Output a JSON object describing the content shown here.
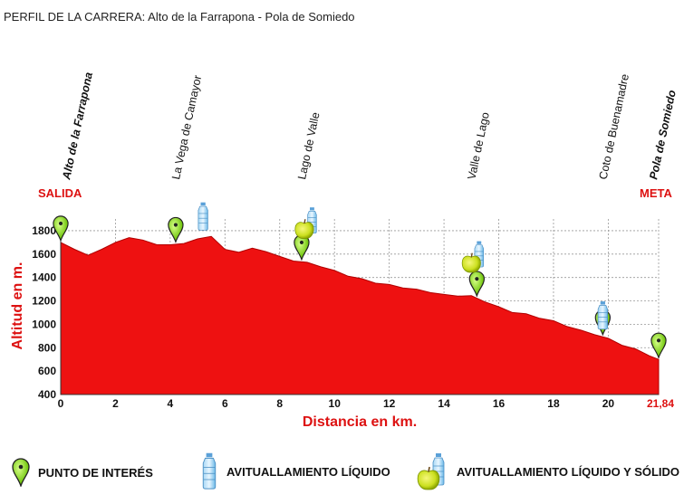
{
  "header": {
    "title": "PERFIL DE LA CARRERA: Alto de la Farrapona - Pola de Somiedo"
  },
  "chart_data": {
    "type": "area",
    "title": "PERFIL DE LA CARRERA: Alto de la Farrapona - Pola de Somiedo",
    "xlabel": "Distancia en km.",
    "ylabel": "Altitud en m.",
    "xlim": [
      0,
      21.84
    ],
    "ylim": [
      400,
      1900
    ],
    "x_ticks": [
      "0",
      "2",
      "4",
      "6",
      "8",
      "10",
      "12",
      "14",
      "16",
      "18",
      "20",
      "21,84"
    ],
    "y_ticks": [
      "400",
      "600",
      "800",
      "1000",
      "1200",
      "1400",
      "1600",
      "1800"
    ],
    "grid": true,
    "fill_color": "#ee1111",
    "series": [
      {
        "x": [
          0,
          0.5,
          1,
          1.5,
          2,
          2.5,
          3,
          3.5,
          4,
          4.5,
          5,
          5.5,
          6,
          6.5,
          7,
          7.5,
          8,
          8.5,
          9,
          9.5,
          10,
          10.5,
          11,
          11.5,
          12,
          12.5,
          13,
          13.5,
          14,
          14.5,
          15,
          15.5,
          16,
          16.5,
          17,
          17.5,
          18,
          18.5,
          19,
          19.5,
          20,
          20.5,
          21,
          21.5,
          21.84
        ],
        "y": [
          1700,
          1650,
          1590,
          1650,
          1700,
          1750,
          1720,
          1690,
          1680,
          1700,
          1730,
          1760,
          1640,
          1625,
          1650,
          1630,
          1580,
          1550,
          1530,
          1500,
          1460,
          1420,
          1390,
          1360,
          1340,
          1320,
          1300,
          1280,
          1255,
          1250,
          1245,
          1200,
          1150,
          1110,
          1090,
          1060,
          1030,
          990,
          950,
          920,
          880,
          830,
          790,
          740,
          700
        ]
      }
    ],
    "places": [
      {
        "name": "Alto de la Farrapona",
        "km": 0,
        "bold": true
      },
      {
        "name": "La Vega de Camayor",
        "km": 4.2,
        "bold": false
      },
      {
        "name": "Lago de Valle",
        "km": 8.8,
        "bold": false
      },
      {
        "name": "Valle de Lago",
        "km": 15.0,
        "bold": false
      },
      {
        "name": "Coto de Buenamadre",
        "km": 19.8,
        "bold": false
      },
      {
        "name": "Pola de Somiedo",
        "km": 21.84,
        "bold": true
      }
    ],
    "start_label": "SALIDA",
    "finish_label": "META",
    "points_of_interest_km": [
      0,
      4.2,
      8.8,
      15.2,
      19.8,
      21.84
    ],
    "liquid_stops_km": [
      5.2,
      19.8
    ],
    "liquid_solid_stops_km": [
      8.9,
      15.0
    ]
  },
  "legend": {
    "poi_label": "PUNTO DE INTERÉS",
    "liquid_label": "AVITUALLAMIENTO LÍQUIDO",
    "liquid_solid_label": "AVITUALLAMIENTO LÍQUIDO Y SÓLIDO"
  },
  "colors": {
    "accent": "#dd1111",
    "poi_marker": "#88dd22",
    "bottle": "#6ab8e8",
    "apple": "#cce020"
  }
}
